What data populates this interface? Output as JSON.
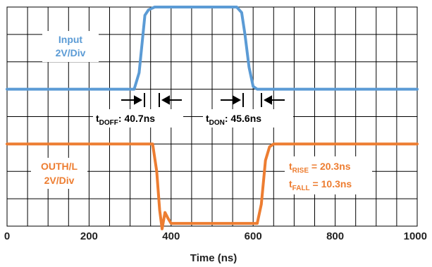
{
  "chart_data": {
    "type": "line",
    "title": "",
    "xlabel": "Time (ns)",
    "ylabel": "",
    "xlim": [
      0,
      1000
    ],
    "x_ticks": [
      "0",
      "200",
      "400",
      "600",
      "800",
      "1000"
    ],
    "grid": true,
    "series": [
      {
        "name": "Input 2V/Div",
        "color": "#5b9bd5",
        "x": [
          0,
          310,
          322,
          330,
          336,
          345,
          360,
          560,
          572,
          580,
          590,
          600,
          610,
          1000
        ],
        "y": [
          1.0,
          1.0,
          1.6,
          2.8,
          3.7,
          3.9,
          4.0,
          4.0,
          3.8,
          3.0,
          1.8,
          1.1,
          1.0,
          1.0
        ]
      },
      {
        "name": "OUTH/L 2V/Div",
        "color": "#ed7d31",
        "x": [
          0,
          355,
          365,
          372,
          378,
          385,
          392,
          400,
          420,
          610,
          620,
          630,
          640,
          650,
          1000
        ],
        "y": [
          -1.0,
          -1.0,
          -2.0,
          -3.4,
          -4.1,
          -3.5,
          -3.7,
          -3.9,
          -3.9,
          -3.9,
          -3.2,
          -1.6,
          -1.1,
          -1.0,
          -1.0
        ]
      }
    ]
  },
  "annotations": {
    "input_label_line1": "Input",
    "input_label_line2": "2V/Div",
    "outh_label_line1": "OUTH/L",
    "outh_label_line2": "2V/Div",
    "tdoff_main": "t",
    "tdoff_sub": "DOFF",
    "tdoff_value": ": 40.7ns",
    "tdon_main": "t",
    "tdon_sub": "DON",
    "tdon_value": ": 45.6ns",
    "trise_main": "t",
    "trise_sub": "RISE",
    "trise_value": " = 20.3ns",
    "tfall_main": "t",
    "tfall_sub": "FALL",
    "tfall_value": " = 10.3ns"
  },
  "colors": {
    "input": "#5b9bd5",
    "output": "#ed7d31",
    "grid": "#000000",
    "text": "#222222"
  }
}
